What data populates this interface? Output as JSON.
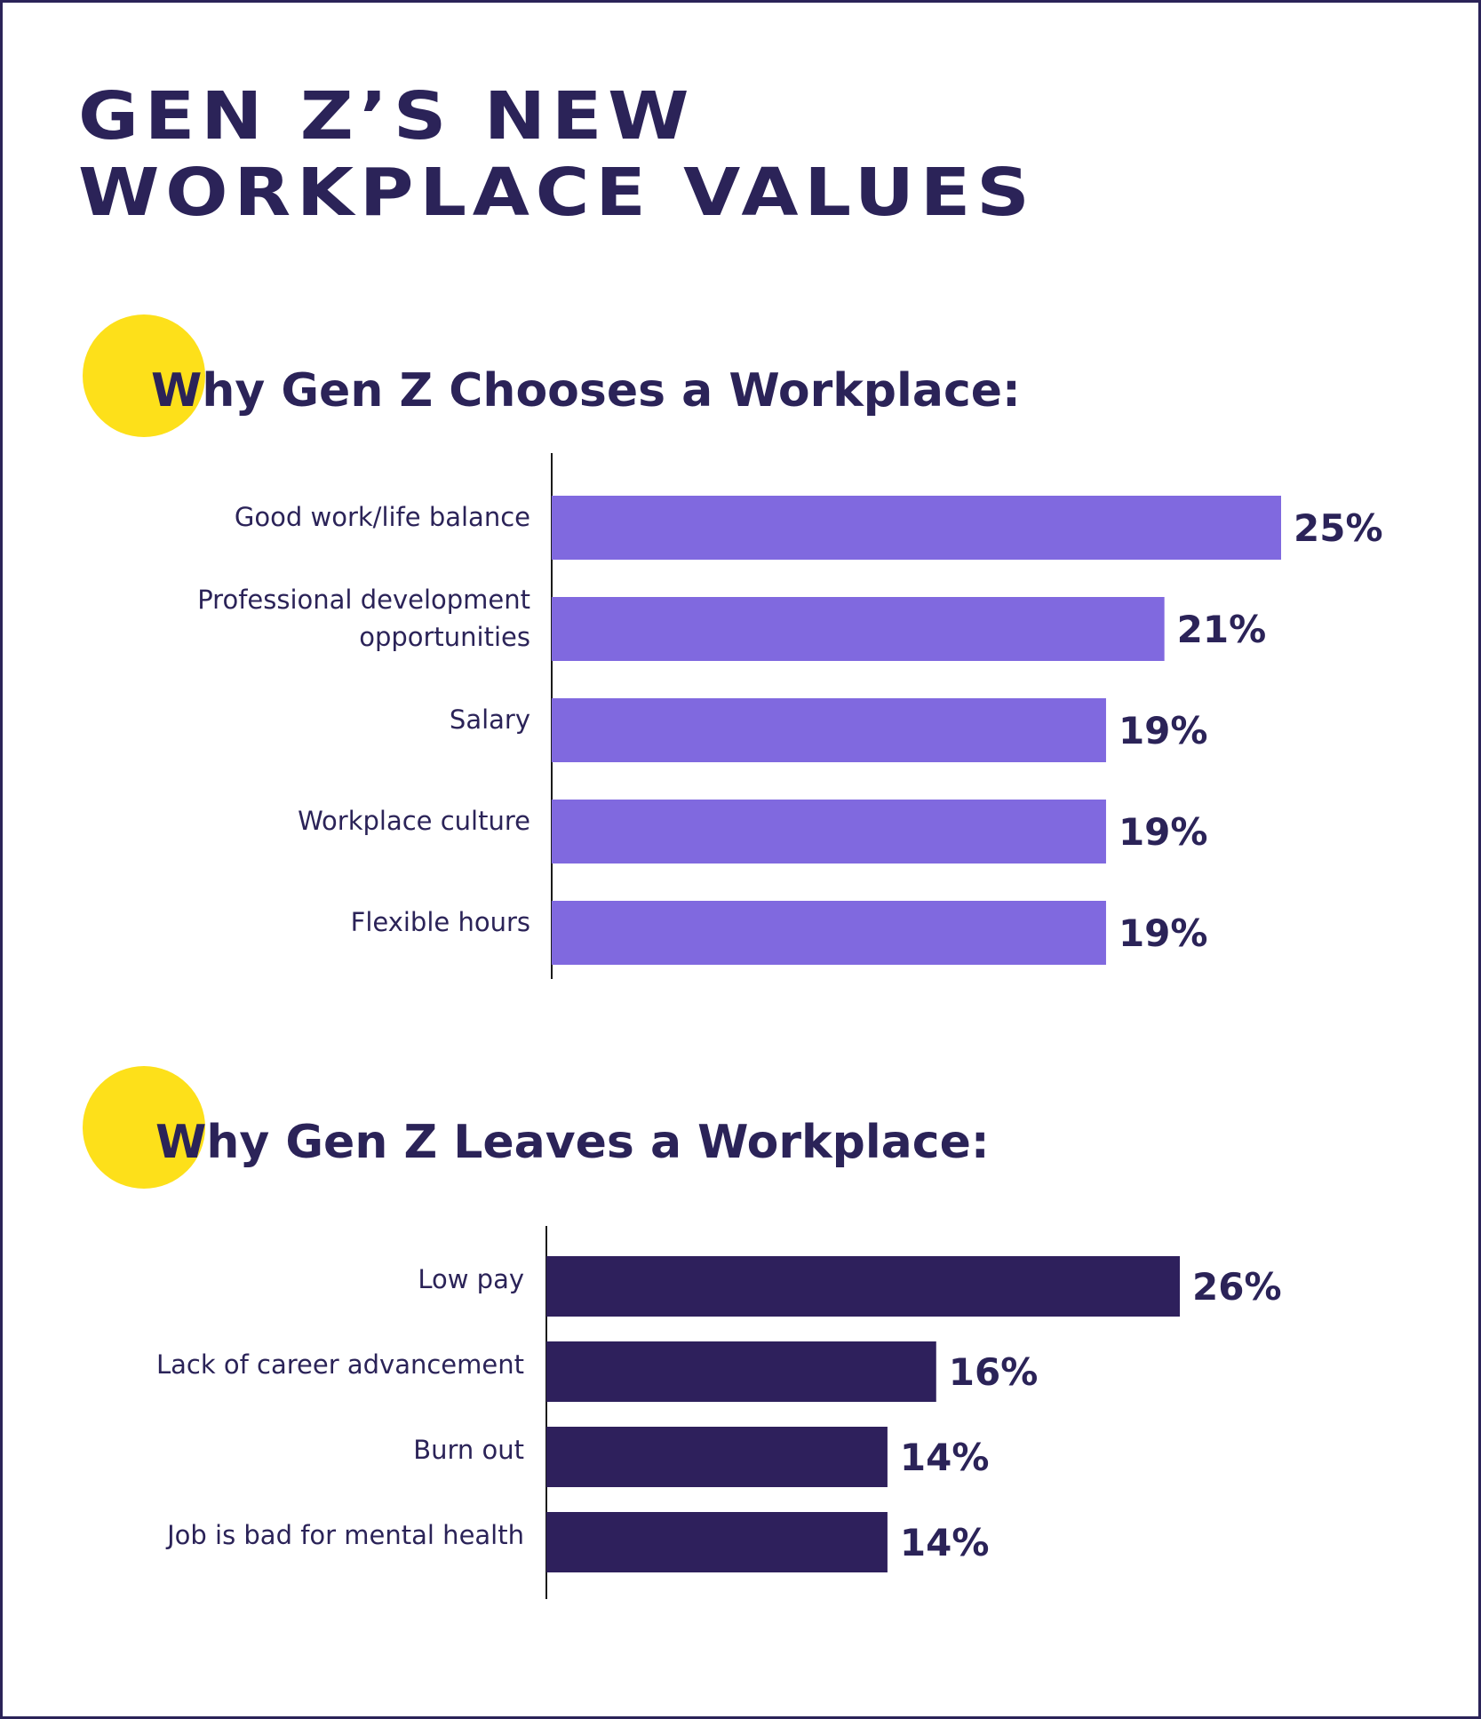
{
  "title": {
    "line1": "GEN Z’S NEW",
    "line2": "WORKPLACE VALUES"
  },
  "colors": {
    "text": "#2b2358",
    "accent_dot": "#fde01a",
    "chooses_bar": "#8069df",
    "leaves_bar": "#2e205c"
  },
  "chart_data": [
    {
      "type": "bar",
      "orientation": "horizontal",
      "title": "Why Gen Z Chooses a Workplace:",
      "categories": [
        [
          "Good work/life balance"
        ],
        [
          "Professional development",
          "opportunities"
        ],
        [
          "Salary"
        ],
        [
          "Workplace culture"
        ],
        [
          "Flexible hours"
        ]
      ],
      "values": [
        25,
        21,
        19,
        19,
        19
      ],
      "value_labels": [
        "25%",
        "21%",
        "19%",
        "19%",
        "19%"
      ],
      "unit": "%",
      "xlim": [
        0,
        25
      ],
      "color": "#8069df",
      "grid": false,
      "legend": "none"
    },
    {
      "type": "bar",
      "orientation": "horizontal",
      "title": "Why Gen Z Leaves a Workplace:",
      "categories": [
        [
          "Low pay"
        ],
        [
          "Lack of career advancement"
        ],
        [
          "Burn out"
        ],
        [
          "Job is bad for mental health"
        ]
      ],
      "values": [
        26,
        16,
        14,
        14
      ],
      "value_labels": [
        "26%",
        "16%",
        "14%",
        "14%"
      ],
      "unit": "%",
      "xlim": [
        0,
        26
      ],
      "color": "#2e205c",
      "grid": false,
      "legend": "none"
    }
  ]
}
